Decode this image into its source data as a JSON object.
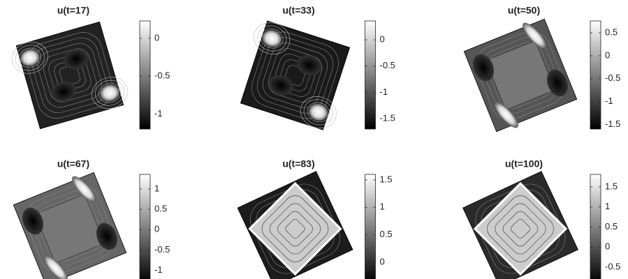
{
  "chart_data": [
    {
      "type": "contour",
      "title": "u(t=17)",
      "clim": [
        -1.2,
        0.23
      ],
      "cticks": [
        -1,
        -0.5,
        0
      ]
    },
    {
      "type": "contour",
      "title": "u(t=33)",
      "clim": [
        -1.7,
        0.36
      ],
      "cticks": [
        -1.5,
        -1,
        -0.5,
        0
      ]
    },
    {
      "type": "contour",
      "title": "u(t=50)",
      "clim": [
        -1.6,
        0.76
      ],
      "cticks": [
        -1.5,
        -1,
        -0.5,
        0,
        0.5
      ]
    },
    {
      "type": "contour",
      "title": "u(t=67)",
      "clim": [
        -1.3,
        1.36
      ],
      "cticks": [
        -1,
        -0.5,
        0,
        0.5,
        1
      ]
    },
    {
      "type": "contour",
      "title": "u(t=83)",
      "clim": [
        -0.37,
        1.6
      ],
      "cticks": [
        0,
        0.5,
        1,
        1.5
      ]
    },
    {
      "type": "contour",
      "title": "u(t=100)",
      "clim": [
        -0.88,
        1.81
      ],
      "cticks": [
        -0.5,
        0,
        0.5,
        1,
        1.5
      ]
    }
  ]
}
